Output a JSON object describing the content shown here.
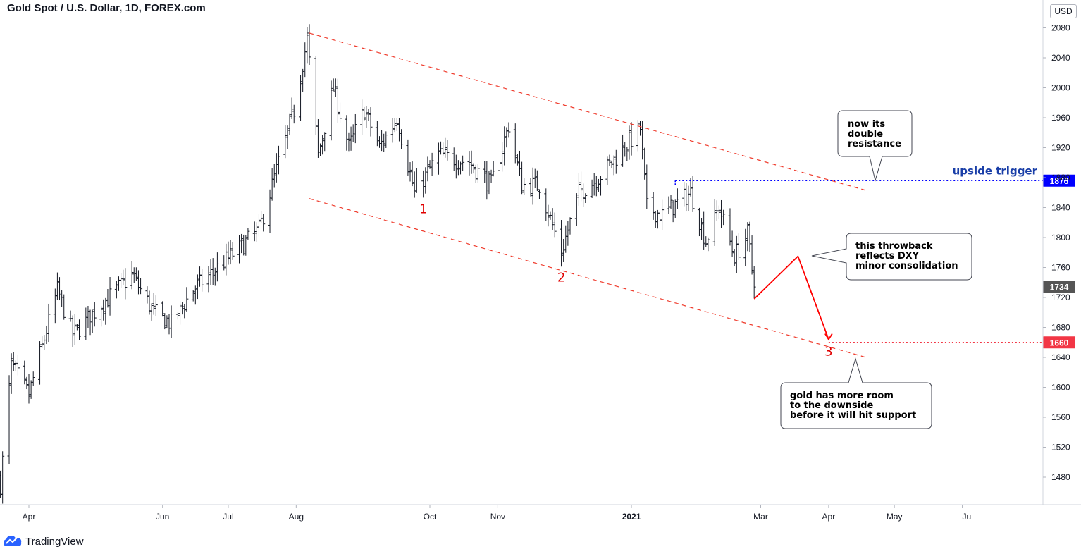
{
  "header": {
    "title": "Gold Spot / U.S. Dollar, 1D, FOREX.com",
    "currency": "USD"
  },
  "brand": {
    "name": "TradingView"
  },
  "colors": {
    "bars": "#131722",
    "channel": "#ef3b2c",
    "trigger_blue": "#0000ff",
    "label_blue": "#1a3fa8",
    "support_red": "#f23645",
    "last_price_bg": "#555555"
  },
  "chart_data": {
    "type": "ohlc-bar",
    "title": "Gold Spot / U.S. Dollar, 1D, FOREX.com",
    "ylabel": "USD",
    "ylim": [
      1445,
      2105
    ],
    "y_ticks": [
      1480,
      1520,
      1560,
      1600,
      1640,
      1680,
      1720,
      1760,
      1800,
      1840,
      1880,
      1920,
      1960,
      2000,
      2040,
      2080
    ],
    "x_ticks": [
      {
        "label": "Apr",
        "date": "2020-04-01",
        "bold": false
      },
      {
        "label": "Jun",
        "date": "2020-06-01",
        "bold": false
      },
      {
        "label": "Jul",
        "date": "2020-07-01",
        "bold": false
      },
      {
        "label": "Aug",
        "date": "2020-08-01",
        "bold": false
      },
      {
        "label": "Oct",
        "date": "2020-10-01",
        "bold": false
      },
      {
        "label": "Nov",
        "date": "2020-11-01",
        "bold": false
      },
      {
        "label": "2021",
        "date": "2021-01-01",
        "bold": true
      },
      {
        "label": "Mar",
        "date": "2021-03-01",
        "bold": false
      },
      {
        "label": "Apr",
        "date": "2021-04-01",
        "bold": false
      },
      {
        "label": "May",
        "date": "2021-05-01",
        "bold": false
      },
      {
        "label": "Ju",
        "date": "2021-06-01",
        "bold": false
      }
    ],
    "price_path": [
      {
        "date": "2020-03-19",
        "close": 1470
      },
      {
        "date": "2020-03-24",
        "close": 1630
      },
      {
        "date": "2020-04-01",
        "close": 1590
      },
      {
        "date": "2020-04-14",
        "close": 1730
      },
      {
        "date": "2020-04-21",
        "close": 1670
      },
      {
        "date": "2020-05-04",
        "close": 1710
      },
      {
        "date": "2020-05-18",
        "close": 1750
      },
      {
        "date": "2020-05-28",
        "close": 1700
      },
      {
        "date": "2020-06-05",
        "close": 1685
      },
      {
        "date": "2020-06-15",
        "close": 1730
      },
      {
        "date": "2020-06-30",
        "close": 1770
      },
      {
        "date": "2020-07-15",
        "close": 1810
      },
      {
        "date": "2020-07-24",
        "close": 1900
      },
      {
        "date": "2020-07-31",
        "close": 1970
      },
      {
        "date": "2020-08-06",
        "close": 2065
      },
      {
        "date": "2020-08-11",
        "close": 1910
      },
      {
        "date": "2020-08-18",
        "close": 2000
      },
      {
        "date": "2020-08-25",
        "close": 1920
      },
      {
        "date": "2020-09-01",
        "close": 1970
      },
      {
        "date": "2020-09-08",
        "close": 1920
      },
      {
        "date": "2020-09-16",
        "close": 1960
      },
      {
        "date": "2020-09-24",
        "close": 1860
      },
      {
        "date": "2020-10-05",
        "close": 1910
      },
      {
        "date": "2020-10-19",
        "close": 1900
      },
      {
        "date": "2020-10-29",
        "close": 1870
      },
      {
        "date": "2020-11-06",
        "close": 1950
      },
      {
        "date": "2020-11-12",
        "close": 1870
      },
      {
        "date": "2020-11-20",
        "close": 1870
      },
      {
        "date": "2020-11-30",
        "close": 1780
      },
      {
        "date": "2020-12-08",
        "close": 1860
      },
      {
        "date": "2020-12-17",
        "close": 1880
      },
      {
        "date": "2021-01-05",
        "close": 1945
      },
      {
        "date": "2021-01-08",
        "close": 1840
      },
      {
        "date": "2021-01-15",
        "close": 1830
      },
      {
        "date": "2021-01-28",
        "close": 1860
      },
      {
        "date": "2021-02-04",
        "close": 1795
      },
      {
        "date": "2021-02-10",
        "close": 1840
      },
      {
        "date": "2021-02-17",
        "close": 1775
      },
      {
        "date": "2021-02-23",
        "close": 1805
      },
      {
        "date": "2021-02-26",
        "close": 1734
      }
    ],
    "channel": {
      "upper": [
        {
          "date": "2020-08-07",
          "price": 2073
        },
        {
          "date": "2021-04-18",
          "price": 1863
        }
      ],
      "lower": [
        {
          "date": "2020-08-07",
          "price": 1852
        },
        {
          "date": "2021-04-18",
          "price": 1640
        }
      ]
    },
    "wave_labels": [
      {
        "label": "1",
        "date": "2020-09-28",
        "price": 1838
      },
      {
        "label": "2",
        "date": "2020-11-30",
        "price": 1747
      },
      {
        "label": "3",
        "date": "2021-04-01",
        "price": 1648
      }
    ],
    "projection": [
      {
        "date": "2021-02-26",
        "price": 1718
      },
      {
        "date": "2021-03-18",
        "price": 1775
      },
      {
        "date": "2021-04-01",
        "price": 1664
      }
    ],
    "levels": [
      {
        "name": "upside trigger",
        "price": 1876,
        "label": "1876",
        "from": "2021-01-21",
        "color": "blue"
      },
      {
        "name": "support",
        "price": 1660,
        "label": "1660",
        "from": "2021-04-01",
        "color": "red"
      }
    ],
    "last_price": {
      "price": 1734,
      "label": "1734"
    },
    "annotations": {
      "upside_trigger_label": "upside trigger",
      "double_resistance": [
        "now its",
        "double",
        "resistance"
      ],
      "throwback": [
        "this throwback",
        "reflects DXY",
        "minor consolidation"
      ],
      "support_room": [
        "gold has more room",
        "to the downside",
        "before it will hit support"
      ]
    }
  }
}
